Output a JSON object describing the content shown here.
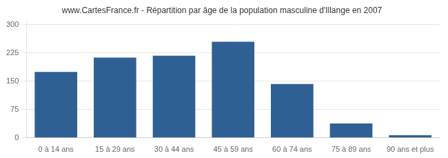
{
  "chart_data": {
    "type": "bar",
    "title": "www.CartesFrance.fr - Répartition par âge de la population masculine d'Illange en 2007",
    "categories": [
      "0 à 14 ans",
      "15 à 29 ans",
      "30 à 44 ans",
      "45 à 59 ans",
      "60 à 74 ans",
      "75 à 89 ans",
      "90 ans et plus"
    ],
    "values": [
      175,
      213,
      218,
      255,
      143,
      38,
      7
    ],
    "color": "#2e6094",
    "ylim": [
      0,
      310
    ],
    "yticks": [
      0,
      75,
      150,
      225,
      300
    ],
    "grid": true
  }
}
